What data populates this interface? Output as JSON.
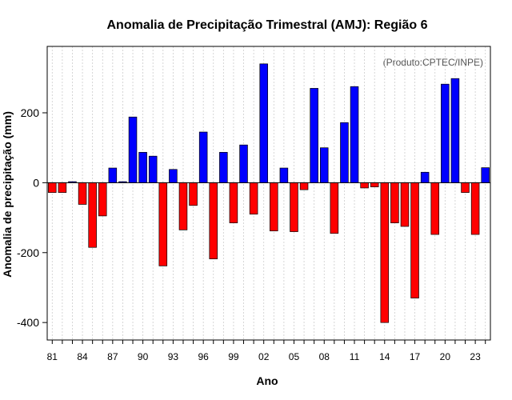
{
  "chart_data": {
    "type": "bar",
    "title": "Anomalia de Precipitação Trimestral (AMJ): Região 6",
    "xlabel": "Ano",
    "ylabel": "Anomalia de precipitação (mm)",
    "credit": "(Produto:CPTEC/INPE)",
    "ylim": [
      -450,
      390
    ],
    "yticks": [
      -400,
      -200,
      0,
      200
    ],
    "years": [
      1981,
      1982,
      1983,
      1984,
      1985,
      1986,
      1987,
      1988,
      1989,
      1990,
      1991,
      1992,
      1993,
      1994,
      1995,
      1996,
      1997,
      1998,
      1999,
      2000,
      2001,
      2002,
      2003,
      2004,
      2005,
      2006,
      2007,
      2008,
      2009,
      2010,
      2011,
      2012,
      2013,
      2014,
      2015,
      2016,
      2017,
      2018,
      2019,
      2020,
      2021,
      2022,
      2023,
      2024
    ],
    "values": [
      -28,
      -28,
      3,
      -62,
      -185,
      -95,
      42,
      3,
      188,
      87,
      76,
      -238,
      38,
      -135,
      -65,
      145,
      -218,
      87,
      -115,
      108,
      -90,
      340,
      -138,
      42,
      -140,
      -20,
      270,
      100,
      -145,
      172,
      275,
      -15,
      -12,
      -400,
      -115,
      -125,
      -330,
      30,
      -148,
      282,
      298,
      -28,
      -148,
      43
    ],
    "xtick_labels": [
      "81",
      "84",
      "87",
      "90",
      "93",
      "96",
      "99",
      "02",
      "05",
      "08",
      "11",
      "14",
      "17",
      "20",
      "23"
    ],
    "positive_color": "#0000ff",
    "negative_color": "#ff0000",
    "grid": true
  }
}
